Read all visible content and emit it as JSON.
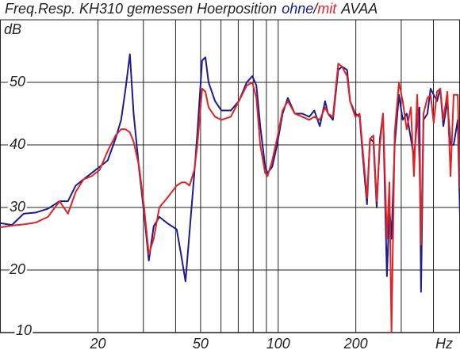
{
  "chart_data": {
    "type": "line",
    "title": "Freq.Resp. KH310 gemessen Hoerposition",
    "title_joiner": "/",
    "title_suffix": "AVAA",
    "y_unit": "dB",
    "x_unit": "Hz",
    "xscale": "log",
    "xlim": [
      8.34,
      507
    ],
    "ylim": [
      10,
      60
    ],
    "xticks": [
      20,
      50,
      100,
      200
    ],
    "x_minor_grid": [
      30,
      40,
      60,
      70,
      80,
      90,
      300,
      400
    ],
    "yticks": [
      10,
      20,
      30,
      40,
      50
    ],
    "grid": true,
    "x": [
      8.34,
      9.28,
      10.3,
      11.5,
      12.8,
      14.2,
      15.3,
      16.4,
      17.6,
      18.9,
      20.3,
      21.8,
      23.4,
      24.6,
      25.6,
      26.6,
      27.5,
      28.9,
      30.2,
      31.5,
      32.9,
      34.6,
      37.1,
      40.4,
      42.2,
      43.7,
      45.3,
      47.3,
      48.6,
      50.7,
      52.2,
      53.7,
      56.9,
      60.2,
      65.5,
      70.4,
      75.5,
      79.4,
      82.3,
      85.2,
      89.0,
      90.9,
      94.8,
      99.0,
      104,
      109,
      116,
      124,
      132,
      138,
      145,
      152,
      156,
      163,
      171,
      177,
      185,
      190,
      199,
      207,
      213,
      221,
      227,
      234,
      241,
      248,
      255,
      264,
      270,
      275,
      283,
      294,
      304,
      315,
      327,
      336,
      346,
      353,
      358,
      366,
      379,
      390,
      401,
      413,
      425,
      437,
      453,
      466,
      479,
      497,
      507
    ],
    "series": [
      {
        "name": "ohne",
        "color": "#1c1c8f",
        "values": [
          27.5,
          27.2,
          29,
          29.2,
          29.8,
          31,
          31,
          33.5,
          34.5,
          35.5,
          36.5,
          37.5,
          41,
          44,
          49,
          54.5,
          45,
          36,
          29,
          21.5,
          27,
          28.5,
          27.5,
          26.5,
          22,
          18.2,
          26,
          35.5,
          42,
          53.5,
          54,
          50,
          47,
          45.5,
          45.5,
          47,
          50,
          51,
          49.5,
          43,
          36.5,
          35.5,
          36.5,
          40,
          45,
          47.5,
          45,
          45,
          44.5,
          45.5,
          43,
          47,
          45,
          44,
          52,
          52.5,
          52,
          47,
          45,
          44.5,
          38,
          30.5,
          41,
          40.5,
          30,
          41,
          45,
          19,
          30,
          25,
          40,
          48,
          44,
          45,
          41,
          38,
          44,
          46,
          16.5,
          44,
          45,
          49,
          48,
          47,
          49,
          43,
          47,
          40,
          40,
          44,
          28.5
        ]
      },
      {
        "name": "mit",
        "color": "#e02424",
        "values": [
          26.8,
          27.1,
          27.3,
          27.6,
          28.5,
          31,
          29,
          32.5,
          34.5,
          35,
          36,
          39,
          41.5,
          42.5,
          42.5,
          42,
          40.5,
          36.5,
          30,
          22.5,
          25,
          30,
          31.5,
          33.5,
          34,
          34,
          33.5,
          36,
          40,
          49,
          48.5,
          46,
          44.5,
          44,
          44.5,
          47,
          49.5,
          50,
          47.5,
          40,
          35.5,
          35,
          37.5,
          41,
          45.5,
          47,
          45,
          44.5,
          44,
          44.5,
          44,
          46,
          45,
          44.5,
          53,
          52.5,
          51,
          47,
          44.5,
          45,
          39,
          31.5,
          41,
          41.5,
          31,
          40,
          45,
          25,
          34,
          10,
          42,
          50,
          47,
          42.5,
          46,
          35,
          48,
          37,
          24,
          45,
          47.5,
          48,
          43.5,
          48.5,
          49,
          44,
          48.5,
          35,
          48,
          48,
          33
        ]
      }
    ]
  }
}
